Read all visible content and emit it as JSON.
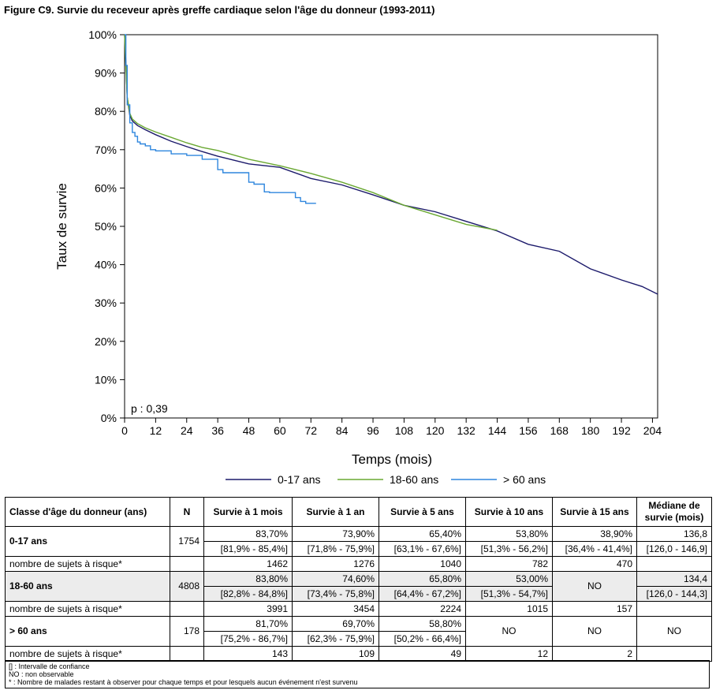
{
  "title": "Figure C9. Survie du receveur après greffe cardiaque selon l'âge du donneur (1993-2011)",
  "chart_data": {
    "type": "line",
    "xlabel": "Temps (mois)",
    "ylabel": "Taux de survie",
    "xlim": [
      0,
      206
    ],
    "ylim": [
      0,
      100
    ],
    "x_ticks": [
      0,
      12,
      24,
      36,
      48,
      60,
      72,
      84,
      96,
      108,
      120,
      132,
      144,
      156,
      168,
      180,
      192,
      204
    ],
    "y_ticks": [
      0,
      10,
      20,
      30,
      40,
      50,
      60,
      70,
      80,
      90,
      100
    ],
    "y_tick_labels": [
      "0%",
      "10%",
      "20%",
      "30%",
      "40%",
      "50%",
      "60%",
      "70%",
      "80%",
      "90%",
      "100%"
    ],
    "annotation": "p : 0,39",
    "legend_position": "bottom",
    "grid": false,
    "series": [
      {
        "name": "0-17 ans",
        "color": "#1c1a6b",
        "step": false,
        "x": [
          0,
          0.5,
          1,
          2,
          3,
          5,
          8,
          12,
          18,
          24,
          30,
          36,
          48,
          60,
          72,
          84,
          96,
          108,
          120,
          132,
          144,
          156,
          168,
          180,
          192,
          200,
          206
        ],
        "y": [
          100,
          93,
          83.7,
          79,
          77.5,
          76.3,
          75.2,
          73.9,
          72.2,
          70.8,
          69.5,
          68.3,
          66.3,
          65.4,
          62.5,
          60.8,
          58.2,
          55.5,
          53.8,
          51.3,
          48.8,
          45.3,
          43.5,
          38.9,
          36,
          34.3,
          32.3
        ]
      },
      {
        "name": "18-60 ans",
        "color": "#6aa832",
        "step": false,
        "x": [
          0,
          0.5,
          1,
          2,
          3,
          5,
          8,
          12,
          18,
          24,
          30,
          36,
          48,
          60,
          72,
          84,
          96,
          108,
          120,
          132,
          144
        ],
        "y": [
          100,
          92,
          83.8,
          79.5,
          78,
          76.8,
          75.7,
          74.6,
          73.2,
          71.8,
          70.6,
          69.8,
          67.5,
          65.8,
          63.8,
          61.5,
          58.8,
          55.5,
          53,
          50.5,
          49
        ]
      },
      {
        "name": "> 60 ans",
        "color": "#2e86de",
        "step": true,
        "x": [
          0,
          0.5,
          1,
          2,
          3,
          4,
          5,
          6,
          8,
          10,
          12,
          18,
          24,
          30,
          36,
          38,
          42,
          48,
          50,
          54,
          56,
          60,
          66,
          68,
          70,
          72,
          74
        ],
        "y": [
          100,
          92,
          81.7,
          77,
          74.5,
          73.5,
          72,
          71.5,
          71,
          70,
          69.7,
          68.9,
          68.5,
          67.5,
          64.8,
          64,
          64,
          61.5,
          61,
          59,
          58.8,
          58.8,
          57.5,
          56.5,
          56,
          56,
          56
        ]
      }
    ]
  },
  "table": {
    "headers": {
      "classe": "Classe d'âge du donneur (ans)",
      "n": "N",
      "s1m": "Survie à 1 mois",
      "s1a": "Survie à 1 an",
      "s5a": "Survie à 5 ans",
      "s10a": "Survie à 10 ans",
      "s15a": "Survie à 15 ans",
      "median": "Médiane de survie (mois)"
    },
    "groups": [
      {
        "label": "0-17 ans",
        "n": "1754",
        "values": [
          "83,70%",
          "73,90%",
          "65,40%",
          "53,80%",
          "38,90%",
          "136,8"
        ],
        "ci": [
          "[81,9% - 85,4%]",
          "[71,8% - 75,9%]",
          "[63,1% - 67,6%]",
          "[51,3% - 56,2%]",
          "[36,4% - 41,4%]",
          "[126,0 - 146,9]"
        ],
        "risk_label": "nombre de sujets à risque*",
        "risk": [
          "1462",
          "1276",
          "1040",
          "782",
          "470",
          ""
        ]
      },
      {
        "label": "18-60 ans",
        "n": "4808",
        "values": [
          "83,80%",
          "74,60%",
          "65,80%",
          "53,00%",
          "NO",
          "134,4"
        ],
        "ci": [
          "[82,8% - 84,8%]",
          "[73,4% - 75,8%]",
          "[64,4% - 67,2%]",
          "[51,3% - 54,7%]",
          "",
          "[126,0 - 144,3]"
        ],
        "risk_label": "nombre de sujets à risque*",
        "risk": [
          "3991",
          "3454",
          "2224",
          "1015",
          "157",
          ""
        ]
      },
      {
        "label": "> 60 ans",
        "n": "178",
        "values": [
          "81,70%",
          "69,70%",
          "58,80%",
          "NO",
          "NO",
          "NO"
        ],
        "ci": [
          "[75,2% - 86,7%]",
          "[62,3% - 75,9%]",
          "[50,2% - 66,4%]",
          "",
          "",
          ""
        ],
        "risk_label": "nombre de sujets à risque*",
        "risk": [
          "143",
          "109",
          "49",
          "12",
          "2",
          ""
        ]
      }
    ]
  },
  "notes": [
    "[] : Intervalle de confiance",
    "NO : non observable",
    "* : Nombre de malades restant à observer pour chaque temps et pour lesquels aucun événement n'est survenu"
  ]
}
